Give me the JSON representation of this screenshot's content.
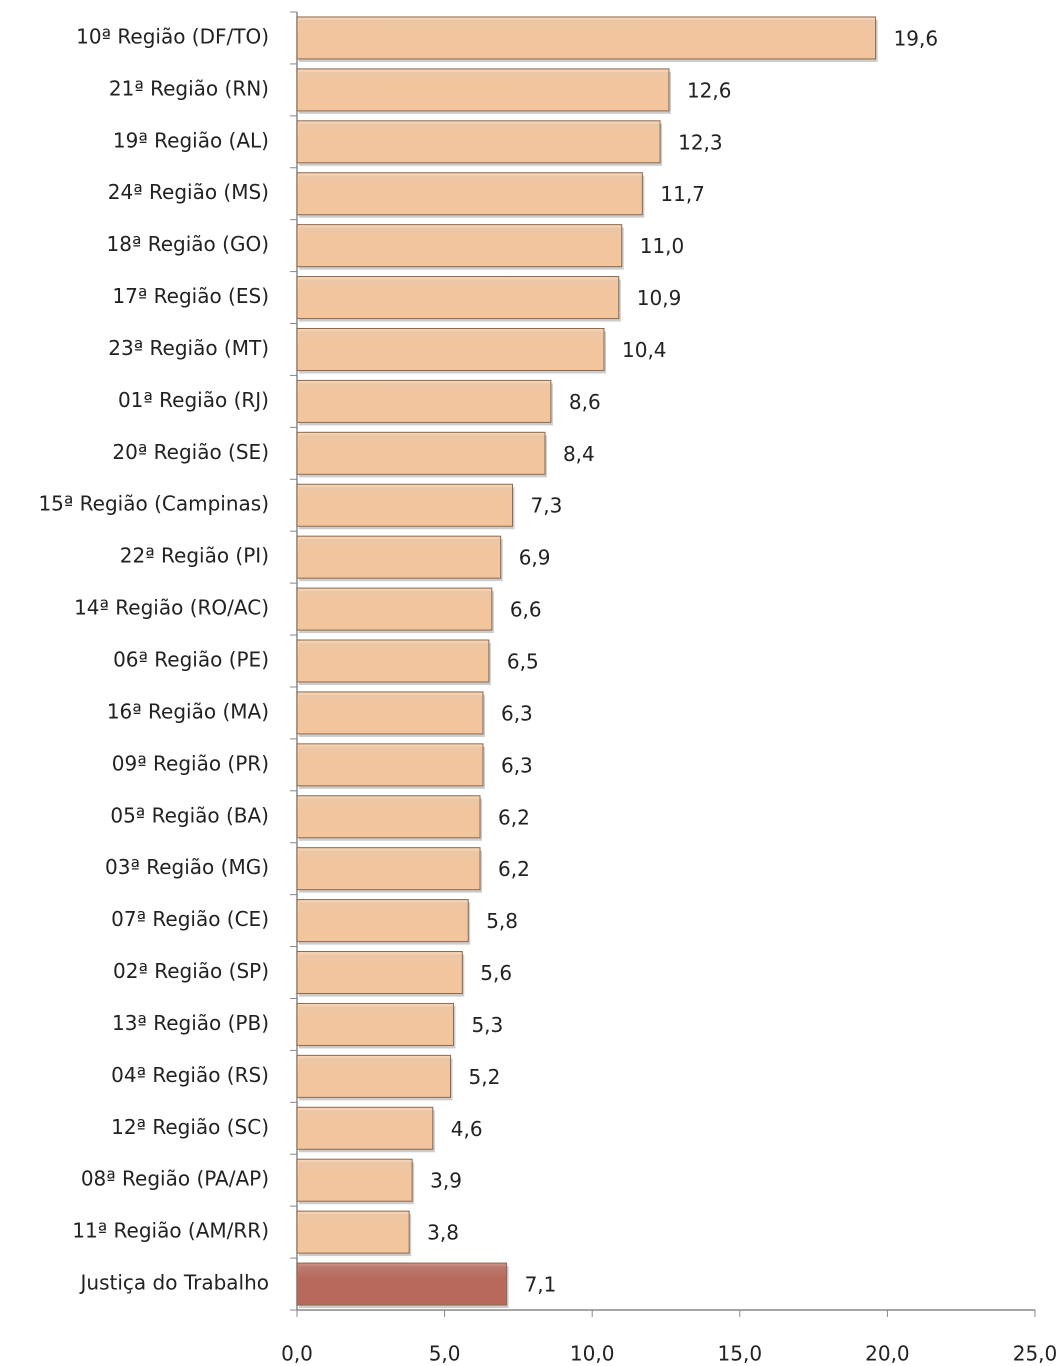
{
  "chart_data": {
    "type": "bar",
    "orientation": "horizontal",
    "categories": [
      "10ª Região (DF/TO)",
      "21ª Região (RN)",
      "19ª Região (AL)",
      "24ª Região (MS)",
      "18ª Região (GO)",
      "17ª Região (ES)",
      "23ª Região (MT)",
      "01ª Região (RJ)",
      "20ª Região (SE)",
      "15ª Região (Campinas)",
      "22ª Região (PI)",
      "14ª Região (RO/AC)",
      "06ª Região (PE)",
      "16ª Região (MA)",
      "09ª Região (PR)",
      "05ª Região (BA)",
      "03ª Região (MG)",
      "07ª Região (CE)",
      "02ª Região (SP)",
      "13ª Região (PB)",
      "04ª Região (RS)",
      "12ª Região (SC)",
      "08ª Região (PA/AP)",
      "11ª Região (AM/RR)",
      "Justiça do Trabalho"
    ],
    "values": [
      19.6,
      12.6,
      12.3,
      11.7,
      11.0,
      10.9,
      10.4,
      8.6,
      8.4,
      7.3,
      6.9,
      6.6,
      6.5,
      6.3,
      6.3,
      6.2,
      6.2,
      5.8,
      5.6,
      5.3,
      5.2,
      4.6,
      3.9,
      3.8,
      7.1
    ],
    "value_labels": [
      "19,6",
      "12,6",
      "12,3",
      "11,7",
      "11,0",
      "10,9",
      "10,4",
      "8,6",
      "8,4",
      "7,3",
      "6,9",
      "6,6",
      "6,5",
      "6,3",
      "6,3",
      "6,2",
      "6,2",
      "5,8",
      "5,6",
      "5,3",
      "5,2",
      "4,6",
      "3,9",
      "3,8",
      "7,1"
    ],
    "colors": [
      "#f2c59d",
      "#f2c59d",
      "#f2c59d",
      "#f2c59d",
      "#f2c59d",
      "#f2c59d",
      "#f2c59d",
      "#f2c59d",
      "#f2c59d",
      "#f2c59d",
      "#f2c59d",
      "#f2c59d",
      "#f2c59d",
      "#f2c59d",
      "#f2c59d",
      "#f2c59d",
      "#f2c59d",
      "#f2c59d",
      "#f2c59d",
      "#f2c59d",
      "#f2c59d",
      "#f2c59d",
      "#f2c59d",
      "#f2c59d",
      "#b8695c"
    ],
    "xlim": [
      0,
      25
    ],
    "xticks": [
      {
        "value": 0,
        "label": "0,0"
      },
      {
        "value": 5,
        "label": "5,0"
      },
      {
        "value": 10,
        "label": "10,0"
      },
      {
        "value": 15,
        "label": "15,0"
      },
      {
        "value": 20,
        "label": "20,0"
      },
      {
        "value": 25,
        "label": "25,0"
      }
    ]
  }
}
